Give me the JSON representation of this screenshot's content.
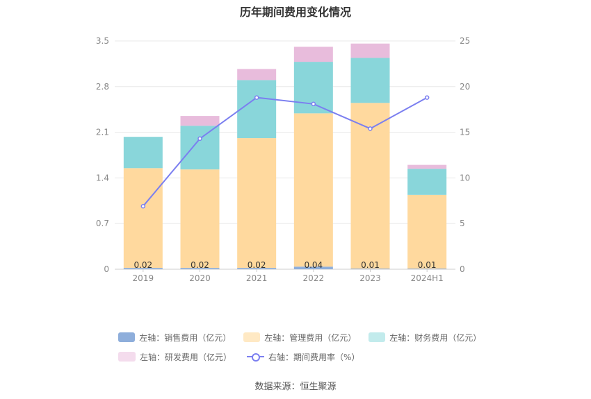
{
  "chart_data": {
    "type": "bar",
    "stacked": true,
    "title": "历年期间费用变化情况",
    "categories": [
      "2019",
      "2020",
      "2021",
      "2022",
      "2023",
      "2024H1"
    ],
    "left_axis": {
      "min": 0,
      "max": 3.5,
      "ticks": [
        "0",
        "0.7",
        "1.4",
        "2.1",
        "2.8",
        "3.5"
      ]
    },
    "right_axis": {
      "min": 0,
      "max": 25,
      "ticks": [
        "0",
        "5",
        "10",
        "15",
        "20",
        "25"
      ]
    },
    "grid": true,
    "legend_position": "bottom",
    "series": [
      {
        "name": "左轴：销售费用（亿元）",
        "axis": "left",
        "color": "#8eaedb",
        "values": [
          0.02,
          0.02,
          0.02,
          0.04,
          0.01,
          0.01
        ],
        "labels": [
          "0.02",
          "0.02",
          "0.02",
          "0.04",
          "0.01",
          "0.01"
        ]
      },
      {
        "name": "左轴：管理费用（亿元）",
        "axis": "left",
        "color": "#ffd99e",
        "values": [
          1.53,
          1.51,
          1.99,
          2.35,
          2.54,
          1.13
        ]
      },
      {
        "name": "左轴：财务费用（亿元）",
        "axis": "left",
        "color": "#89d6da",
        "values": [
          0.48,
          0.67,
          0.89,
          0.79,
          0.69,
          0.4
        ]
      },
      {
        "name": "左轴：研发费用（亿元）",
        "axis": "left",
        "color": "#e8bcdc",
        "values": [
          0,
          0.15,
          0.17,
          0.23,
          0.22,
          0.06
        ]
      },
      {
        "name": "右轴：期间费用率（%）",
        "axis": "right",
        "type": "line",
        "color": "#7b7ff0",
        "values": [
          6.9,
          14.3,
          18.8,
          18.1,
          15.4,
          18.8
        ]
      }
    ],
    "source": "数据来源：恒生聚源"
  }
}
